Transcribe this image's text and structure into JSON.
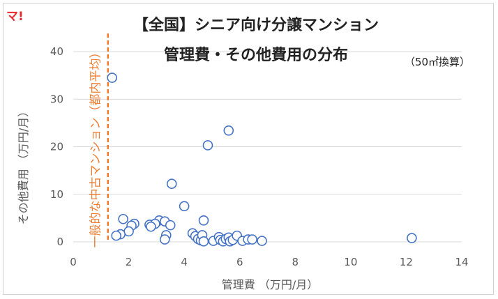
{
  "logo_text": "マ!",
  "chart_data": {
    "type": "scatter",
    "title_line1": "【全国】シニア向け分譲マンション",
    "title_line2": "管理費・その他費用の分布",
    "subtitle": "（50㎡換算）",
    "xlabel": "管理費 （万円/月）",
    "ylabel": "その他費用 （万円/月）",
    "xlim": [
      0,
      14
    ],
    "ylim": [
      0,
      40
    ],
    "xticks": [
      0,
      2,
      4,
      6,
      8,
      10,
      12,
      14
    ],
    "yticks": [
      0,
      10,
      20,
      30,
      40
    ],
    "grid": "horizontal",
    "reference_line": {
      "x": 1.25,
      "label": "一般的な中古マンション（都内平均）",
      "color": "#ed7d31"
    },
    "marker_color": "#4472c4",
    "points": [
      [
        1.4,
        34.5
      ],
      [
        5.6,
        23.4
      ],
      [
        4.85,
        20.3
      ],
      [
        3.55,
        12.2
      ],
      [
        4.0,
        7.5
      ],
      [
        1.8,
        4.8
      ],
      [
        4.7,
        4.5
      ],
      [
        3.1,
        4.5
      ],
      [
        3.3,
        4.3
      ],
      [
        2.2,
        3.8
      ],
      [
        2.1,
        3.4
      ],
      [
        2.75,
        3.6
      ],
      [
        2.95,
        3.8
      ],
      [
        3.5,
        3.5
      ],
      [
        2.8,
        3.2
      ],
      [
        2.0,
        2.2
      ],
      [
        1.7,
        1.6
      ],
      [
        1.55,
        1.3
      ],
      [
        3.35,
        1.4
      ],
      [
        3.3,
        0.5
      ],
      [
        4.3,
        1.8
      ],
      [
        4.4,
        1.2
      ],
      [
        4.5,
        0.6
      ],
      [
        4.6,
        0.3
      ],
      [
        4.65,
        1.4
      ],
      [
        4.7,
        0.1
      ],
      [
        5.05,
        0.2
      ],
      [
        5.25,
        1.0
      ],
      [
        5.3,
        0.4
      ],
      [
        5.4,
        0.1
      ],
      [
        5.5,
        0.6
      ],
      [
        5.6,
        0.9
      ],
      [
        5.65,
        0.1
      ],
      [
        5.75,
        0.4
      ],
      [
        5.9,
        1.3
      ],
      [
        6.1,
        0.2
      ],
      [
        6.3,
        0.5
      ],
      [
        6.45,
        0.5
      ],
      [
        6.8,
        0.2
      ],
      [
        12.2,
        0.8
      ]
    ]
  }
}
